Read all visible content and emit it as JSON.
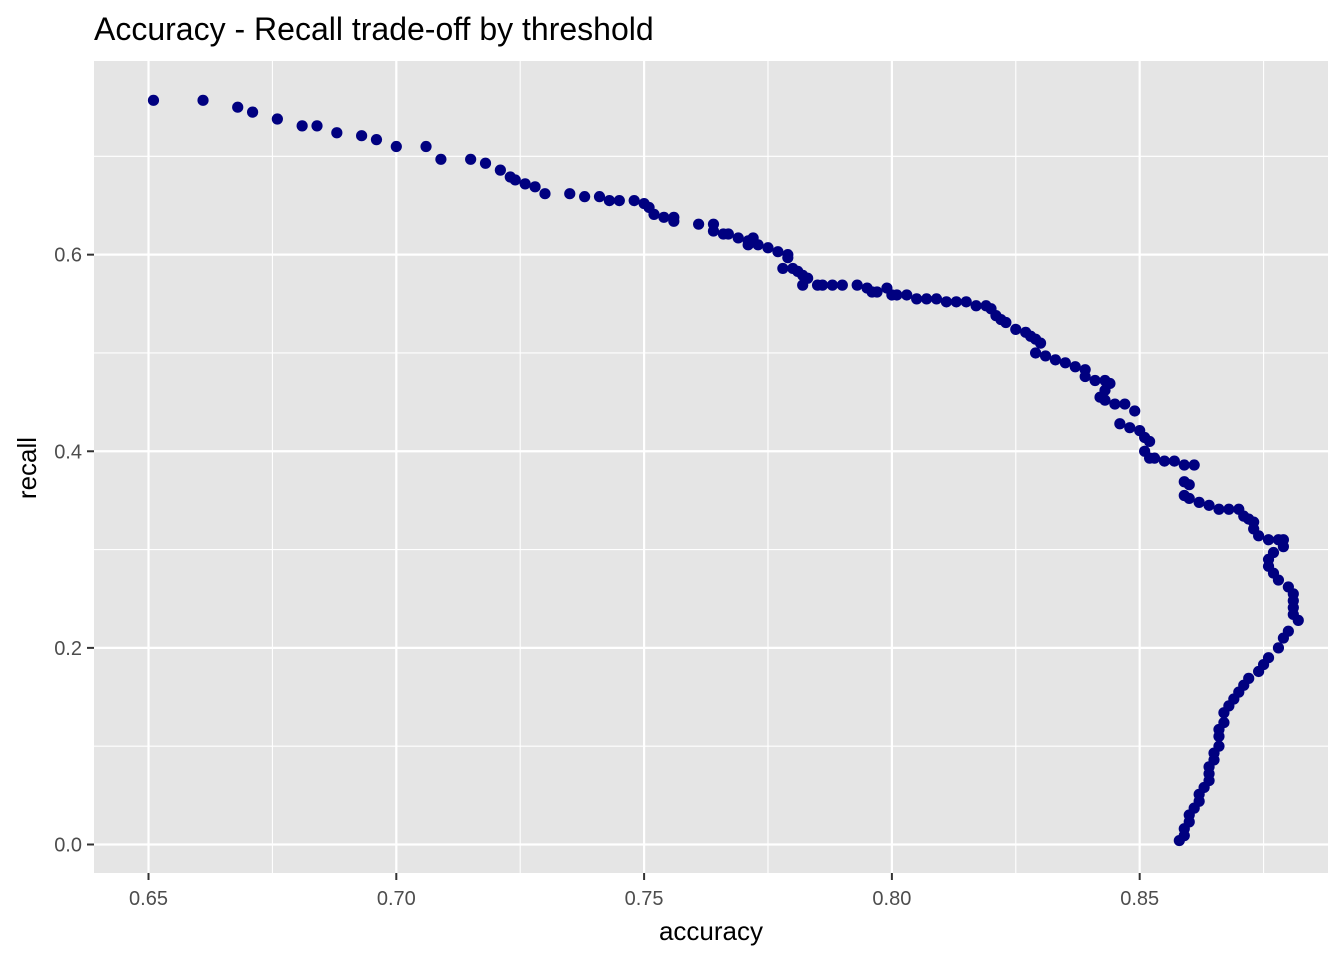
{
  "chart_data": {
    "type": "scatter",
    "title": "Accuracy - Recall trade-off by threshold",
    "xlabel": "accuracy",
    "ylabel": "recall",
    "xlim": [
      0.639,
      0.888
    ],
    "ylim": [
      -0.029,
      0.797
    ],
    "x_ticks": [
      0.65,
      0.7,
      0.75,
      0.8,
      0.85
    ],
    "x_tick_labels": [
      "0.65",
      "0.70",
      "0.75",
      "0.80",
      "0.85"
    ],
    "y_ticks": [
      0.0,
      0.2,
      0.4,
      0.6
    ],
    "y_tick_labels": [
      "0.0",
      "0.2",
      "0.4",
      "0.6"
    ],
    "grid": true,
    "legend": "none",
    "colors": {
      "panel": "#e5e5e5",
      "grid": "#ffffff",
      "point": "#000080",
      "tick_text": "#4d4d4d"
    },
    "points": [
      [
        0.651,
        0.757
      ],
      [
        0.661,
        0.757
      ],
      [
        0.668,
        0.75
      ],
      [
        0.671,
        0.745
      ],
      [
        0.676,
        0.738
      ],
      [
        0.681,
        0.731
      ],
      [
        0.684,
        0.731
      ],
      [
        0.688,
        0.724
      ],
      [
        0.693,
        0.721
      ],
      [
        0.696,
        0.717
      ],
      [
        0.7,
        0.71
      ],
      [
        0.706,
        0.71
      ],
      [
        0.709,
        0.697
      ],
      [
        0.715,
        0.697
      ],
      [
        0.718,
        0.693
      ],
      [
        0.721,
        0.686
      ],
      [
        0.723,
        0.679
      ],
      [
        0.724,
        0.676
      ],
      [
        0.726,
        0.672
      ],
      [
        0.728,
        0.669
      ],
      [
        0.73,
        0.662
      ],
      [
        0.735,
        0.662
      ],
      [
        0.738,
        0.659
      ],
      [
        0.741,
        0.659
      ],
      [
        0.743,
        0.655
      ],
      [
        0.745,
        0.655
      ],
      [
        0.748,
        0.655
      ],
      [
        0.75,
        0.652
      ],
      [
        0.751,
        0.648
      ],
      [
        0.752,
        0.641
      ],
      [
        0.754,
        0.638
      ],
      [
        0.756,
        0.638
      ],
      [
        0.756,
        0.634
      ],
      [
        0.761,
        0.631
      ],
      [
        0.764,
        0.631
      ],
      [
        0.764,
        0.624
      ],
      [
        0.766,
        0.621
      ],
      [
        0.767,
        0.621
      ],
      [
        0.769,
        0.617
      ],
      [
        0.771,
        0.614
      ],
      [
        0.771,
        0.61
      ],
      [
        0.772,
        0.617
      ],
      [
        0.773,
        0.61
      ],
      [
        0.775,
        0.607
      ],
      [
        0.777,
        0.603
      ],
      [
        0.779,
        0.6
      ],
      [
        0.779,
        0.597
      ],
      [
        0.778,
        0.586
      ],
      [
        0.78,
        0.586
      ],
      [
        0.781,
        0.583
      ],
      [
        0.782,
        0.579
      ],
      [
        0.783,
        0.576
      ],
      [
        0.782,
        0.569
      ],
      [
        0.785,
        0.569
      ],
      [
        0.786,
        0.569
      ],
      [
        0.788,
        0.569
      ],
      [
        0.79,
        0.569
      ],
      [
        0.793,
        0.569
      ],
      [
        0.795,
        0.566
      ],
      [
        0.796,
        0.562
      ],
      [
        0.797,
        0.562
      ],
      [
        0.799,
        0.566
      ],
      [
        0.8,
        0.559
      ],
      [
        0.801,
        0.559
      ],
      [
        0.803,
        0.559
      ],
      [
        0.805,
        0.555
      ],
      [
        0.807,
        0.555
      ],
      [
        0.809,
        0.555
      ],
      [
        0.811,
        0.552
      ],
      [
        0.813,
        0.552
      ],
      [
        0.815,
        0.552
      ],
      [
        0.817,
        0.548
      ],
      [
        0.819,
        0.548
      ],
      [
        0.82,
        0.545
      ],
      [
        0.821,
        0.538
      ],
      [
        0.822,
        0.534
      ],
      [
        0.823,
        0.531
      ],
      [
        0.825,
        0.524
      ],
      [
        0.827,
        0.521
      ],
      [
        0.828,
        0.517
      ],
      [
        0.829,
        0.514
      ],
      [
        0.83,
        0.51
      ],
      [
        0.829,
        0.5
      ],
      [
        0.831,
        0.497
      ],
      [
        0.833,
        0.493
      ],
      [
        0.835,
        0.49
      ],
      [
        0.837,
        0.486
      ],
      [
        0.839,
        0.483
      ],
      [
        0.839,
        0.476
      ],
      [
        0.841,
        0.472
      ],
      [
        0.843,
        0.472
      ],
      [
        0.844,
        0.469
      ],
      [
        0.843,
        0.462
      ],
      [
        0.842,
        0.455
      ],
      [
        0.843,
        0.452
      ],
      [
        0.845,
        0.448
      ],
      [
        0.847,
        0.448
      ],
      [
        0.849,
        0.441
      ],
      [
        0.846,
        0.428
      ],
      [
        0.848,
        0.424
      ],
      [
        0.85,
        0.421
      ],
      [
        0.851,
        0.414
      ],
      [
        0.852,
        0.41
      ],
      [
        0.851,
        0.4
      ],
      [
        0.852,
        0.393
      ],
      [
        0.853,
        0.393
      ],
      [
        0.855,
        0.39
      ],
      [
        0.857,
        0.39
      ],
      [
        0.859,
        0.386
      ],
      [
        0.861,
        0.386
      ],
      [
        0.859,
        0.369
      ],
      [
        0.86,
        0.366
      ],
      [
        0.859,
        0.355
      ],
      [
        0.86,
        0.352
      ],
      [
        0.862,
        0.348
      ],
      [
        0.864,
        0.345
      ],
      [
        0.866,
        0.341
      ],
      [
        0.868,
        0.341
      ],
      [
        0.87,
        0.341
      ],
      [
        0.871,
        0.334
      ],
      [
        0.872,
        0.331
      ],
      [
        0.873,
        0.328
      ],
      [
        0.873,
        0.321
      ],
      [
        0.874,
        0.314
      ],
      [
        0.876,
        0.31
      ],
      [
        0.878,
        0.31
      ],
      [
        0.879,
        0.31
      ],
      [
        0.879,
        0.303
      ],
      [
        0.877,
        0.297
      ],
      [
        0.876,
        0.29
      ],
      [
        0.876,
        0.283
      ],
      [
        0.877,
        0.276
      ],
      [
        0.878,
        0.269
      ],
      [
        0.88,
        0.262
      ],
      [
        0.881,
        0.255
      ],
      [
        0.881,
        0.248
      ],
      [
        0.881,
        0.241
      ],
      [
        0.881,
        0.234
      ],
      [
        0.882,
        0.228
      ],
      [
        0.88,
        0.217
      ],
      [
        0.879,
        0.21
      ],
      [
        0.878,
        0.2
      ],
      [
        0.876,
        0.19
      ],
      [
        0.875,
        0.183
      ],
      [
        0.874,
        0.176
      ],
      [
        0.872,
        0.169
      ],
      [
        0.871,
        0.162
      ],
      [
        0.87,
        0.155
      ],
      [
        0.869,
        0.148
      ],
      [
        0.868,
        0.141
      ],
      [
        0.867,
        0.134
      ],
      [
        0.867,
        0.124
      ],
      [
        0.866,
        0.117
      ],
      [
        0.866,
        0.11
      ],
      [
        0.866,
        0.1
      ],
      [
        0.865,
        0.093
      ],
      [
        0.865,
        0.086
      ],
      [
        0.864,
        0.079
      ],
      [
        0.864,
        0.072
      ],
      [
        0.864,
        0.065
      ],
      [
        0.863,
        0.058
      ],
      [
        0.862,
        0.051
      ],
      [
        0.862,
        0.044
      ],
      [
        0.861,
        0.037
      ],
      [
        0.86,
        0.03
      ],
      [
        0.86,
        0.023
      ],
      [
        0.859,
        0.016
      ],
      [
        0.859,
        0.009
      ],
      [
        0.858,
        0.004
      ]
    ]
  }
}
